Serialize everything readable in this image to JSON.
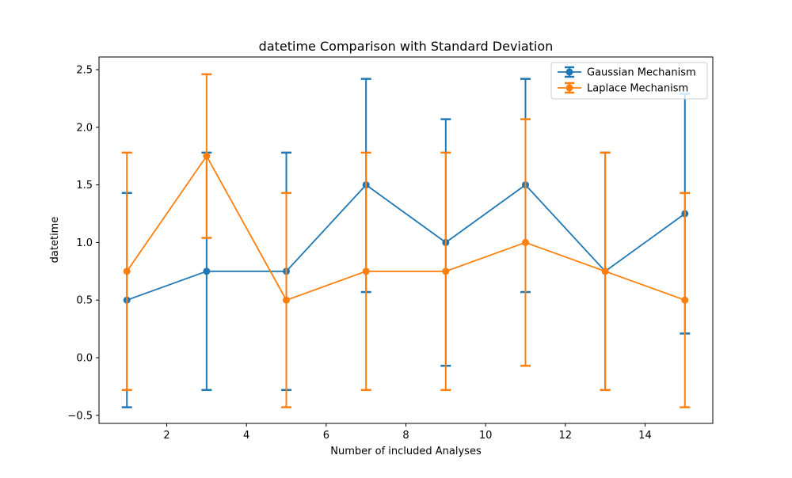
{
  "chart_data": {
    "type": "line",
    "title": "datetime Comparison with Standard Deviation",
    "xlabel": "Number of included Analyses",
    "ylabel": "datetime",
    "xlim": [
      0.3,
      15.7
    ],
    "ylim": [
      -0.57,
      2.61
    ],
    "xticks": [
      2,
      4,
      6,
      8,
      10,
      12,
      14
    ],
    "xtick_labels": [
      "2",
      "4",
      "6",
      "8",
      "10",
      "12",
      "14"
    ],
    "yticks": [
      -0.5,
      0.0,
      0.5,
      1.0,
      1.5,
      2.0,
      2.5
    ],
    "ytick_labels": [
      "−0.5",
      "0.0",
      "0.5",
      "1.0",
      "1.5",
      "2.0",
      "2.5"
    ],
    "grid": false,
    "legend_position": "top-right",
    "x": [
      1,
      3,
      5,
      7,
      9,
      11,
      13,
      15
    ],
    "series": [
      {
        "name": "Gaussian Mechanism",
        "color": "#1f77b4",
        "values": [
          0.5,
          0.75,
          0.75,
          1.5,
          1.0,
          1.5,
          0.75,
          1.25
        ],
        "err_low": [
          -0.43,
          -0.28,
          -0.28,
          0.57,
          -0.07,
          0.57,
          -0.28,
          0.21
        ],
        "err_high": [
          1.43,
          1.78,
          1.78,
          2.42,
          2.07,
          2.42,
          1.78,
          2.29
        ]
      },
      {
        "name": "Laplace Mechanism",
        "color": "#ff7f0e",
        "values": [
          0.75,
          1.75,
          0.5,
          0.75,
          0.75,
          1.0,
          0.75,
          0.5
        ],
        "err_low": [
          -0.28,
          1.04,
          -0.43,
          -0.28,
          -0.28,
          -0.07,
          -0.28,
          -0.43
        ],
        "err_high": [
          1.78,
          2.46,
          1.43,
          1.78,
          1.78,
          2.07,
          1.78,
          1.43
        ]
      }
    ]
  }
}
